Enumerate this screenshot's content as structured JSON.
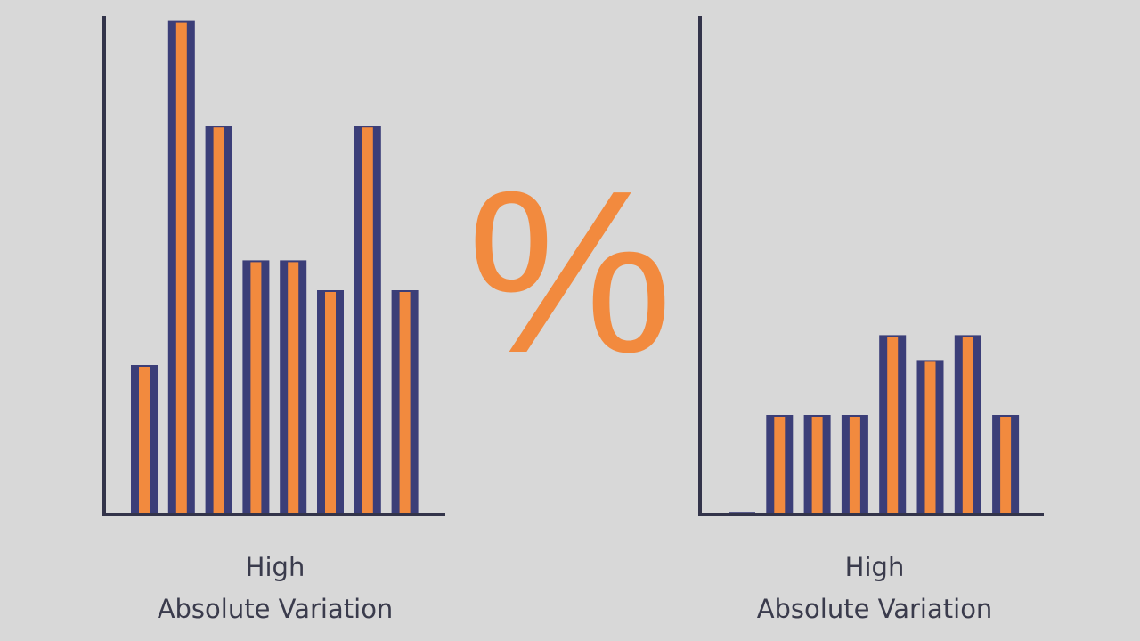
{
  "chart_data": [
    {
      "type": "bar",
      "values": [
        30,
        99,
        78,
        51,
        51,
        45,
        78,
        45
      ],
      "ylim": [
        0,
        100
      ],
      "color": "#3b3e78",
      "accent_color": "#f28a3e",
      "caption": [
        "High",
        "Absolute Variation"
      ]
    },
    {
      "type": "bar",
      "values": [
        0.5,
        20,
        20,
        20,
        36,
        31,
        36,
        20
      ],
      "ylim": [
        0,
        100
      ],
      "color": "#3b3e78",
      "accent_color": "#f28a3e",
      "caption": [
        "High",
        "Absolute Variation"
      ]
    }
  ],
  "symbol": "%"
}
